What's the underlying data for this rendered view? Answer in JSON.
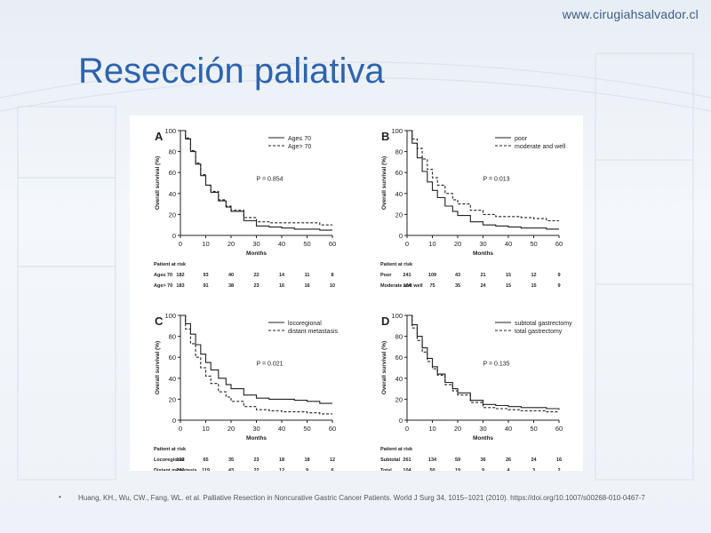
{
  "header": {
    "site_url": "www.cirugiahsalvador.cl"
  },
  "slide": {
    "title": "Resección paliativa",
    "bullet": "•",
    "citation": "Huang, KH., Wu, CW., Fang, WL. et al. Palliative Resection in Noncurative Gastric Cancer Patients. World J Surg 34, 1015–1021 (2010). https://doi.org/10.1007/s00268-010-0467-7"
  },
  "colors": {
    "title": "#2e63ad",
    "site": "#3b5b85",
    "lines": "#222222"
  },
  "chart_data": [
    {
      "type": "line",
      "panel_label": "A",
      "xlabel": "Months",
      "ylabel": "Overall survival (%)",
      "xlim": [
        0,
        60
      ],
      "ylim": [
        0,
        100
      ],
      "xticks": [
        0,
        10,
        20,
        30,
        40,
        50,
        60
      ],
      "yticks": [
        0,
        20,
        40,
        60,
        80,
        100
      ],
      "p_value": "P = 0.854",
      "legend_position": "top-right",
      "series": [
        {
          "name": "Age≤ 70",
          "style": "solid",
          "x": [
            0,
            2,
            4,
            6,
            8,
            10,
            12,
            15,
            18,
            20,
            25,
            30,
            35,
            40,
            45,
            50,
            55,
            60
          ],
          "y": [
            100,
            92,
            80,
            68,
            57,
            48,
            41,
            33,
            27,
            23,
            14,
            9,
            8,
            7,
            6,
            6,
            5,
            5
          ]
        },
        {
          "name": "Age> 70",
          "style": "dashed",
          "x": [
            0,
            2,
            4,
            6,
            8,
            10,
            12,
            15,
            18,
            20,
            25,
            30,
            35,
            40,
            45,
            50,
            55,
            60
          ],
          "y": [
            100,
            93,
            81,
            69,
            58,
            48,
            42,
            34,
            28,
            24,
            17,
            13,
            12,
            12,
            12,
            12,
            10,
            10
          ]
        }
      ],
      "risk_table": {
        "title": "Patient at risk",
        "rows": [
          {
            "label": "Age≤ 70",
            "values": [
              "182",
              "93",
              "40",
              "22",
              "14",
              "11",
              "8"
            ]
          },
          {
            "label": "Age> 70",
            "values": [
              "183",
              "91",
              "38",
              "23",
              "16",
              "16",
              "10"
            ]
          }
        ]
      }
    },
    {
      "type": "line",
      "panel_label": "B",
      "xlabel": "Months",
      "ylabel": "Overall survival (%)",
      "xlim": [
        0,
        60
      ],
      "ylim": [
        0,
        100
      ],
      "xticks": [
        0,
        10,
        20,
        30,
        40,
        50,
        60
      ],
      "yticks": [
        0,
        20,
        40,
        60,
        80,
        100
      ],
      "p_value": "P = 0.013",
      "legend_position": "top-right",
      "series": [
        {
          "name": "poor",
          "style": "solid",
          "x": [
            0,
            2,
            4,
            6,
            8,
            10,
            12,
            15,
            18,
            20,
            25,
            30,
            35,
            40,
            45,
            50,
            55,
            60
          ],
          "y": [
            100,
            88,
            74,
            61,
            51,
            43,
            36,
            28,
            23,
            19,
            13,
            10,
            9,
            8,
            7,
            7,
            6,
            6
          ]
        },
        {
          "name": "moderate and well",
          "style": "dashed",
          "x": [
            0,
            2,
            4,
            6,
            8,
            10,
            12,
            15,
            18,
            20,
            25,
            30,
            35,
            40,
            45,
            50,
            55,
            60
          ],
          "y": [
            100,
            92,
            83,
            73,
            63,
            55,
            48,
            40,
            34,
            30,
            24,
            20,
            18,
            18,
            17,
            16,
            14,
            14
          ]
        }
      ],
      "risk_table": {
        "title": "Patient at risk",
        "rows": [
          {
            "label": "Poor",
            "values": [
              "241",
              "109",
              "43",
              "21",
              "15",
              "12",
              "9"
            ]
          },
          {
            "label": "Moderate and well",
            "values": [
              "124",
              "75",
              "35",
              "24",
              "15",
              "15",
              "9"
            ]
          }
        ]
      }
    },
    {
      "type": "line",
      "panel_label": "C",
      "xlabel": "Months",
      "ylabel": "Overall survival (%)",
      "xlim": [
        0,
        60
      ],
      "ylim": [
        0,
        100
      ],
      "xticks": [
        0,
        10,
        20,
        30,
        40,
        50,
        60
      ],
      "yticks": [
        0,
        20,
        40,
        60,
        80,
        100
      ],
      "p_value": "P = 0.021",
      "legend_position": "top-right",
      "series": [
        {
          "name": "locoregional",
          "style": "solid",
          "x": [
            0,
            2,
            4,
            6,
            8,
            10,
            12,
            15,
            18,
            20,
            25,
            30,
            35,
            40,
            45,
            50,
            55,
            60
          ],
          "y": [
            100,
            92,
            82,
            72,
            63,
            55,
            48,
            40,
            34,
            30,
            24,
            21,
            20,
            20,
            19,
            18,
            16,
            16
          ]
        },
        {
          "name": "distant metastasis",
          "style": "dashed",
          "x": [
            0,
            2,
            4,
            6,
            8,
            10,
            12,
            15,
            18,
            20,
            25,
            30,
            35,
            40,
            45,
            50,
            55,
            60
          ],
          "y": [
            100,
            87,
            73,
            60,
            50,
            42,
            35,
            27,
            22,
            18,
            13,
            10,
            9,
            8,
            8,
            7,
            6,
            6
          ]
        }
      ],
      "risk_table": {
        "title": "Patient at risk",
        "rows": [
          {
            "label": "Locoregional",
            "values": [
              "122",
              "65",
              "35",
              "23",
              "18",
              "18",
              "12"
            ]
          },
          {
            "label": "Distant metastasis",
            "values": [
              "242",
              "119",
              "43",
              "22",
              "12",
              "9",
              "6"
            ]
          }
        ]
      }
    },
    {
      "type": "line",
      "panel_label": "D",
      "xlabel": "Months",
      "ylabel": "Overall survival (%)",
      "xlim": [
        0,
        60
      ],
      "ylim": [
        0,
        100
      ],
      "xticks": [
        0,
        10,
        20,
        30,
        40,
        50,
        60
      ],
      "yticks": [
        0,
        20,
        40,
        60,
        80,
        100
      ],
      "p_value": "P = 0.135",
      "legend_position": "top-right",
      "series": [
        {
          "name": "subtotal gastrectomy",
          "style": "solid",
          "x": [
            0,
            2,
            4,
            6,
            8,
            10,
            12,
            15,
            18,
            20,
            25,
            30,
            35,
            40,
            45,
            50,
            55,
            60
          ],
          "y": [
            100,
            91,
            80,
            69,
            59,
            51,
            44,
            36,
            30,
            26,
            19,
            15,
            14,
            13,
            12,
            12,
            11,
            10
          ]
        },
        {
          "name": "total gastrectomy",
          "style": "dashed",
          "x": [
            0,
            2,
            4,
            6,
            8,
            10,
            12,
            15,
            18,
            20,
            25,
            30,
            35,
            40,
            45,
            50,
            55,
            60
          ],
          "y": [
            100,
            88,
            76,
            65,
            56,
            49,
            43,
            34,
            28,
            24,
            17,
            12,
            11,
            10,
            9,
            9,
            8,
            8
          ]
        }
      ],
      "risk_table": {
        "title": "Patient at risk",
        "rows": [
          {
            "label": "Subtotal",
            "values": [
              "261",
              "134",
              "59",
              "36",
              "26",
              "24",
              "16"
            ]
          },
          {
            "label": "Total",
            "values": [
              "104",
              "50",
              "19",
              "9",
              "4",
              "3",
              "2"
            ]
          }
        ]
      }
    }
  ]
}
